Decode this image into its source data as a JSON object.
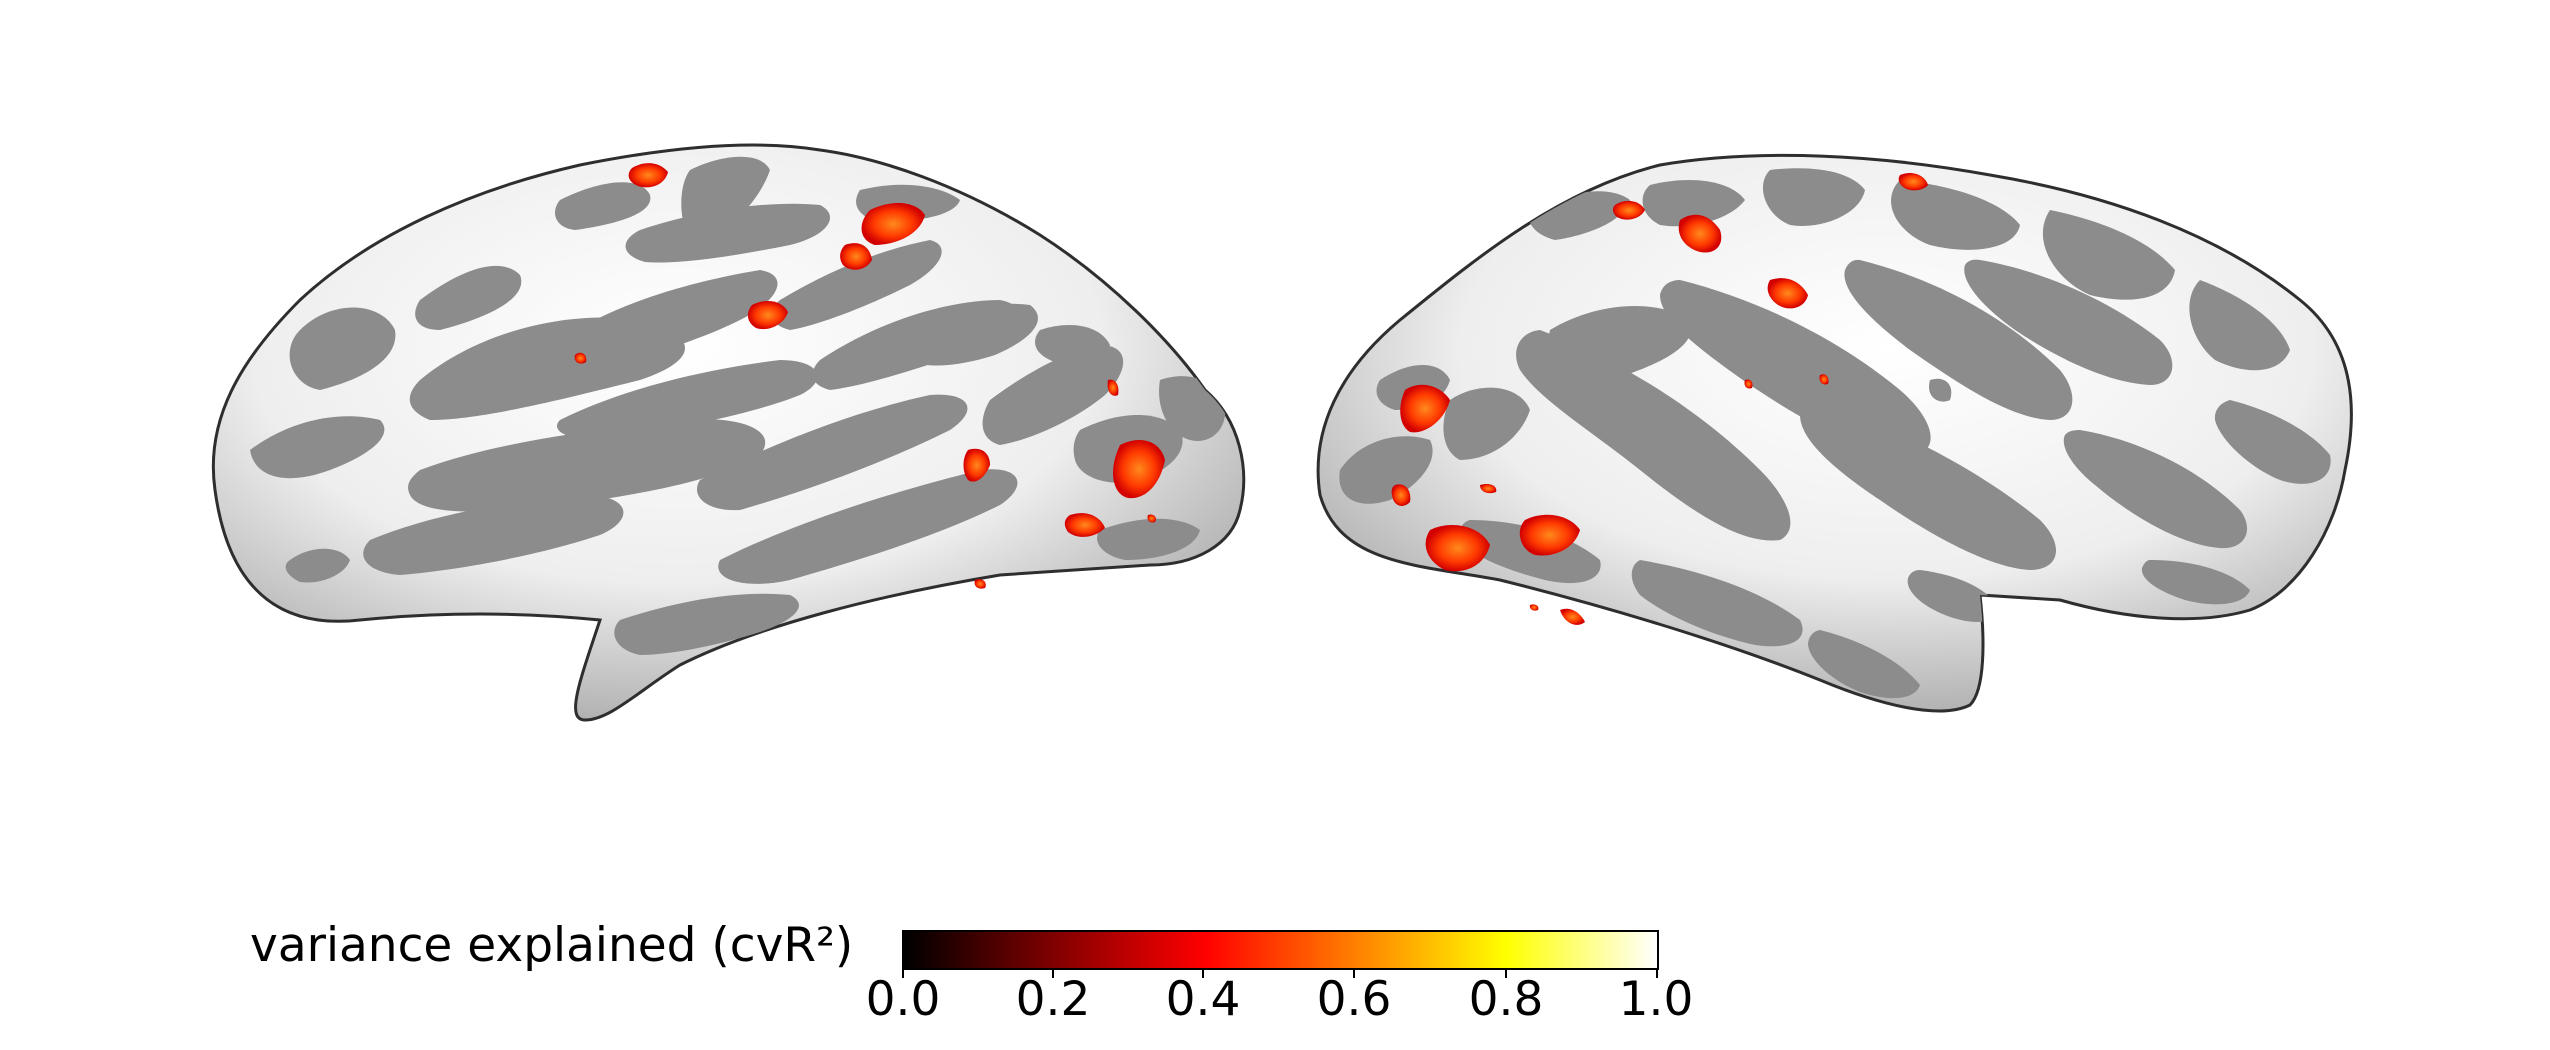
{
  "figure": {
    "hemispheres": [
      "left-hemisphere",
      "right-hemisphere"
    ],
    "surface": "inflated cortical surface",
    "curvature_colors": {
      "gyri": "#f0f0f0",
      "sulci": "#8c8c8c",
      "edge": "#3a3a3a"
    }
  },
  "colorbar": {
    "label": "variance explained (cvR²)",
    "colormap": "hot",
    "colors": [
      "#000000",
      "#800000",
      "#ff0000",
      "#ff8000",
      "#ffff00",
      "#ffffff"
    ],
    "ticks": [
      "0.0",
      "0.2",
      "0.4",
      "0.6",
      "0.8",
      "1.0"
    ],
    "range": [
      0.0,
      1.0
    ]
  }
}
